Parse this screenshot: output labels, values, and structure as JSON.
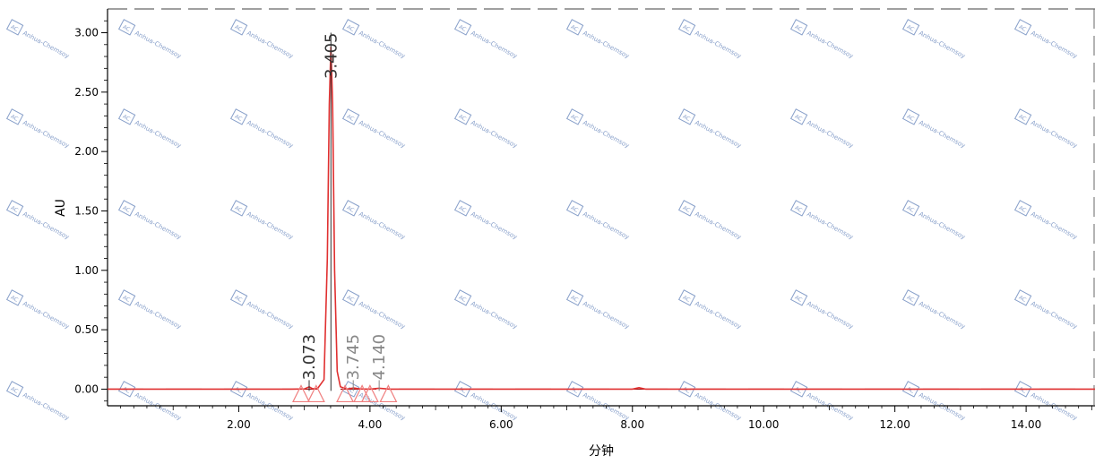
{
  "chart_data": {
    "type": "line",
    "title": "",
    "xlabel": "分钟",
    "ylabel": "AU",
    "xlim": [
      0.0,
      15.05
    ],
    "ylim": [
      -0.14,
      3.2
    ],
    "grid": false,
    "x_ticks": [
      {
        "value": 2.0,
        "label": "2.00"
      },
      {
        "value": 4.0,
        "label": "4.00"
      },
      {
        "value": 6.0,
        "label": "6.00"
      },
      {
        "value": 8.0,
        "label": "8.00"
      },
      {
        "value": 10.0,
        "label": "10.00"
      },
      {
        "value": 12.0,
        "label": "12.00"
      },
      {
        "value": 14.0,
        "label": "14.00"
      }
    ],
    "y_ticks": [
      {
        "value": 0.0,
        "label": "0.00"
      },
      {
        "value": 0.5,
        "label": "0.50"
      },
      {
        "value": 1.0,
        "label": "1.00"
      },
      {
        "value": 1.5,
        "label": "1.50"
      },
      {
        "value": 2.0,
        "label": "2.00"
      },
      {
        "value": 2.5,
        "label": "2.50"
      },
      {
        "value": 3.0,
        "label": "3.00"
      }
    ],
    "series": [
      {
        "color": "#e03030",
        "x": [
          0.0,
          2.8,
          3.0,
          3.073,
          3.12,
          3.2,
          3.3,
          3.35,
          3.38,
          3.405,
          3.43,
          3.46,
          3.5,
          3.55,
          3.65,
          3.745,
          3.85,
          4.0,
          4.14,
          4.3,
          5.0,
          6.0,
          7.0,
          8.0,
          8.1,
          8.2,
          9.0,
          10.0,
          12.0,
          14.0,
          15.05
        ],
        "y": [
          0.0,
          0.0,
          0.002,
          0.02,
          0.005,
          0.004,
          0.08,
          1.1,
          2.4,
          2.88,
          2.4,
          1.0,
          0.15,
          0.02,
          0.0,
          0.01,
          0.002,
          0.0,
          0.008,
          0.0,
          0.0,
          0.0,
          0.0,
          0.0,
          0.012,
          0.0,
          0.0,
          0.0,
          0.0,
          0.0,
          0.0
        ]
      }
    ],
    "peaks": [
      {
        "rt": 3.073,
        "label": "3.073",
        "label_color": "#333333"
      },
      {
        "rt": 3.405,
        "label": "3.405",
        "label_color": "#333333"
      },
      {
        "rt": 3.745,
        "label": "3.745",
        "label_color": "#888888"
      },
      {
        "rt": 4.14,
        "label": "4.140",
        "label_color": "#888888"
      }
    ],
    "integration_markers_x": [
      2.95,
      3.18,
      3.62,
      3.88,
      4.0,
      4.28
    ]
  },
  "watermark": {
    "logo": "AC",
    "text": "Anhua-Chemsoy",
    "color": "#5f7fb8"
  },
  "colors": {
    "trace": "#e03030",
    "marker": "#f08080",
    "axis": "#000000",
    "frame_dash": "#666666"
  }
}
